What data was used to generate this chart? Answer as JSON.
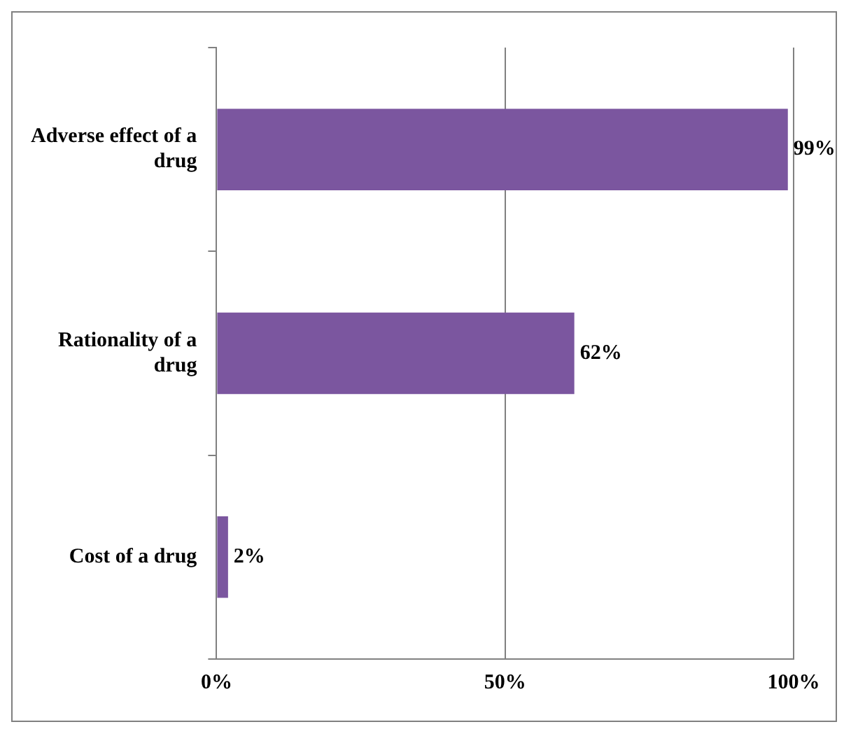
{
  "chart_data": {
    "type": "bar",
    "orientation": "horizontal",
    "categories": [
      "Adverse effect of a drug",
      "Rationality of a drug",
      "Cost of a drug"
    ],
    "values": [
      99,
      62,
      2
    ],
    "color": "#7b569f",
    "value_labels": [
      "99%",
      "62%",
      "2%"
    ],
    "xlim": [
      0,
      100
    ],
    "xticks": [
      {
        "value": 0,
        "label": "0%"
      },
      {
        "value": 50,
        "label": "50%"
      },
      {
        "value": 100,
        "label": "100%"
      }
    ],
    "grid": "x",
    "legend": false
  }
}
